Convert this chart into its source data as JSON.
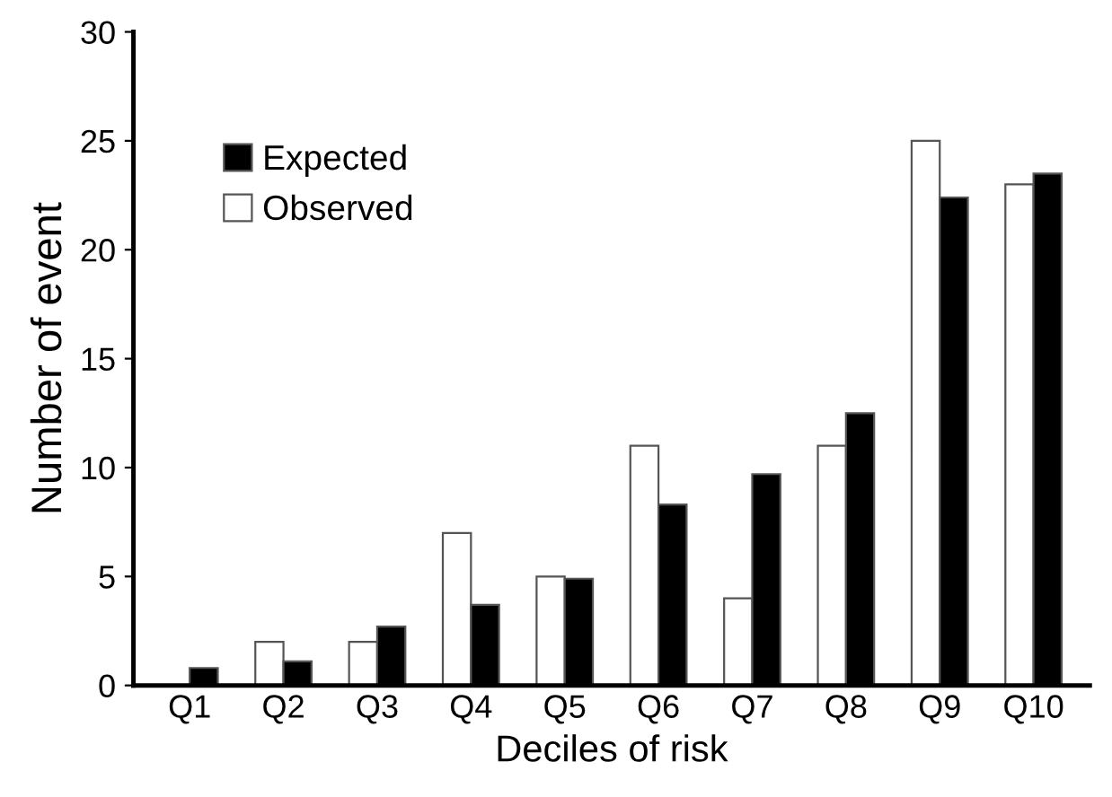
{
  "chart_data": {
    "type": "bar",
    "xlabel": "Deciles of risk",
    "ylabel": "Number of event",
    "categories": [
      "Q1",
      "Q2",
      "Q3",
      "Q4",
      "Q5",
      "Q6",
      "Q7",
      "Q8",
      "Q9",
      "Q10"
    ],
    "series": [
      {
        "name": "Observed",
        "color": "#ffffff",
        "values": [
          null,
          2,
          2,
          7,
          5,
          11,
          4,
          11,
          25,
          23
        ]
      },
      {
        "name": "Expected",
        "color": "#000000",
        "values": [
          0.8,
          1.1,
          2.7,
          3.7,
          4.9,
          8.3,
          9.7,
          12.5,
          22.4,
          23.5
        ]
      }
    ],
    "ylim": [
      0,
      30
    ],
    "yticks": [
      0,
      5,
      10,
      15,
      20,
      25,
      30
    ],
    "grid": false,
    "legend": "top left"
  }
}
